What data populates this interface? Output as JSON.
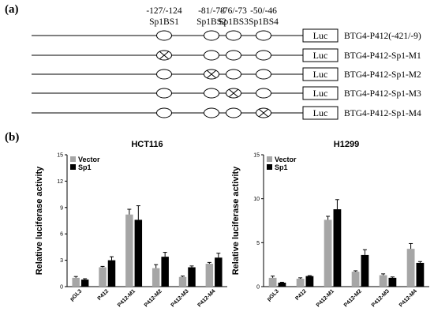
{
  "panel_a": {
    "label": "(a)",
    "sites": [
      {
        "range": "-127/-124",
        "name": "Sp1BS1"
      },
      {
        "range": "-81/-78",
        "name": "Sp1BS2"
      },
      {
        "range": "-76/-73",
        "name": "Sp1BS3"
      },
      {
        "range": "-50/-46",
        "name": "Sp1BS4"
      }
    ],
    "luc_label": "Luc",
    "constructs": [
      {
        "name": "BTG4-P412(-421/-9)",
        "mutated_site": null
      },
      {
        "name": "BTG4-P412-Sp1-M1",
        "mutated_site": 1
      },
      {
        "name": "BTG4-P412-Sp1-M2",
        "mutated_site": 2
      },
      {
        "name": "BTG4-P412-Sp1-M3",
        "mutated_site": 3
      },
      {
        "name": "BTG4-P412-Sp1-M4",
        "mutated_site": 4
      }
    ]
  },
  "panel_b": {
    "label": "(b)"
  },
  "colors": {
    "vector": "#a6a6a6",
    "sp1": "#000000"
  },
  "chart_data": [
    {
      "type": "bar",
      "title": "HCT116",
      "xlabel": "",
      "ylabel": "Relative luciferase activity",
      "categories": [
        "pGL3",
        "P412",
        "P412-M1",
        "P412-M2",
        "P412-M3",
        "P412-M4"
      ],
      "ylim": [
        0,
        15
      ],
      "yticks": [
        0,
        3,
        6,
        9,
        12,
        15
      ],
      "legend": "top-left",
      "series": [
        {
          "name": "Vector",
          "values": [
            1.0,
            2.2,
            8.2,
            2.1,
            1.1,
            2.6
          ],
          "errors": [
            0.15,
            0.1,
            0.6,
            0.4,
            0.1,
            0.15
          ]
        },
        {
          "name": "Sp1",
          "values": [
            0.8,
            3.0,
            7.6,
            3.4,
            2.2,
            3.3
          ],
          "errors": [
            0.1,
            0.4,
            1.6,
            0.5,
            0.15,
            0.5
          ]
        }
      ]
    },
    {
      "type": "bar",
      "title": "H1299",
      "xlabel": "",
      "ylabel": "Relative luciferase activity",
      "categories": [
        "pGL3",
        "P412",
        "P412-M1",
        "P412-M2",
        "P412-M3",
        "P412-M4"
      ],
      "ylim": [
        0,
        15
      ],
      "yticks": [
        0,
        5,
        10,
        15
      ],
      "legend": "top-left",
      "series": [
        {
          "name": "Vector",
          "values": [
            1.0,
            0.9,
            7.6,
            1.7,
            1.3,
            4.3
          ],
          "errors": [
            0.2,
            0.1,
            0.4,
            0.1,
            0.15,
            0.6
          ]
        },
        {
          "name": "Sp1",
          "values": [
            0.45,
            1.2,
            8.8,
            3.6,
            1.0,
            2.7
          ],
          "errors": [
            0.05,
            0.05,
            1.1,
            0.6,
            0.1,
            0.15
          ]
        }
      ]
    }
  ]
}
